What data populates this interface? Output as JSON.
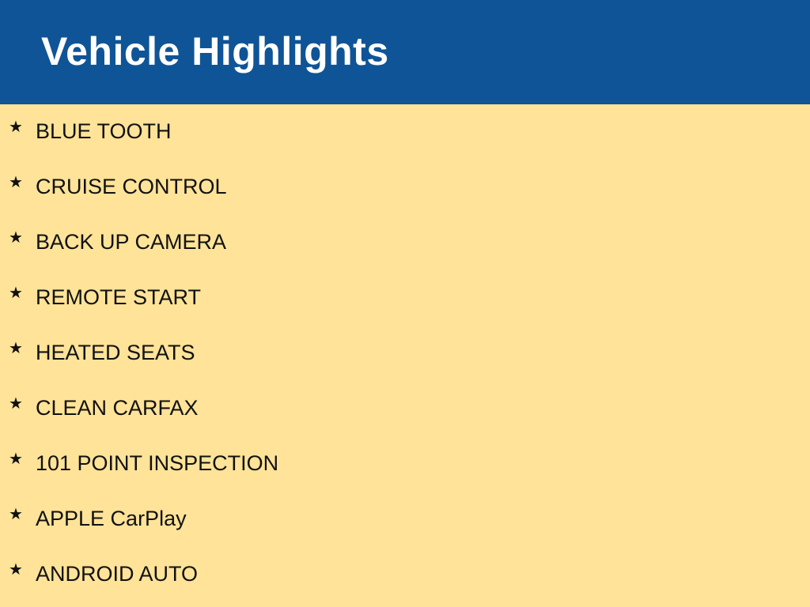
{
  "header": {
    "title": "Vehicle Highlights",
    "background": "#0f5496"
  },
  "page_background": "#fee398",
  "bullet_icon": "star-icon",
  "items": [
    {
      "label": "BLUE TOOTH"
    },
    {
      "label": "CRUISE CONTROL"
    },
    {
      "label": "BACK UP CAMERA"
    },
    {
      "label": "REMOTE START"
    },
    {
      "label": "HEATED SEATS"
    },
    {
      "label": "CLEAN CARFAX"
    },
    {
      "label": "101 POINT INSPECTION"
    },
    {
      "label": "APPLE CarPlay"
    },
    {
      "label": "ANDROID AUTO"
    }
  ]
}
